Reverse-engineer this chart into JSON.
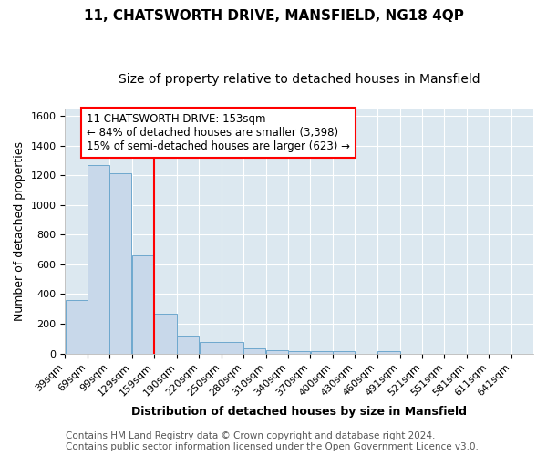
{
  "title1": "11, CHATSWORTH DRIVE, MANSFIELD, NG18 4QP",
  "title2": "Size of property relative to detached houses in Mansfield",
  "xlabel": "Distribution of detached houses by size in Mansfield",
  "ylabel": "Number of detached properties",
  "footer1": "Contains HM Land Registry data © Crown copyright and database right 2024.",
  "footer2": "Contains public sector information licensed under the Open Government Licence v3.0.",
  "categories": [
    "39sqm",
    "69sqm",
    "99sqm",
    "129sqm",
    "159sqm",
    "190sqm",
    "220sqm",
    "250sqm",
    "280sqm",
    "310sqm",
    "340sqm",
    "370sqm",
    "400sqm",
    "430sqm",
    "460sqm",
    "491sqm",
    "521sqm",
    "551sqm",
    "581sqm",
    "611sqm",
    "641sqm"
  ],
  "bar_lefts": [
    39,
    69,
    99,
    129,
    159,
    190,
    220,
    250,
    280,
    310,
    340,
    370,
    400,
    430,
    460,
    491,
    521,
    551,
    581,
    611,
    641
  ],
  "bar_rights": [
    69,
    99,
    129,
    159,
    190,
    220,
    250,
    280,
    310,
    340,
    370,
    400,
    430,
    460,
    491,
    521,
    551,
    581,
    611,
    641,
    671
  ],
  "bar_heights": [
    360,
    1270,
    1210,
    660,
    265,
    120,
    75,
    75,
    35,
    20,
    15,
    15,
    15,
    0,
    15,
    0,
    0,
    0,
    0,
    0,
    0
  ],
  "bar_color": "#c8d8ea",
  "bar_edgecolor": "#6ea8ce",
  "red_line_x": 159,
  "annotation_line1": "11 CHATSWORTH DRIVE: 153sqm",
  "annotation_line2": "← 84% of detached houses are smaller (3,398)",
  "annotation_line3": "15% of semi-detached houses are larger (623) →",
  "annotation_box_color": "white",
  "annotation_box_edgecolor": "red",
  "red_line_color": "red",
  "xlim_left": 39,
  "xlim_right": 671,
  "ylim": [
    0,
    1650
  ],
  "yticks": [
    0,
    200,
    400,
    600,
    800,
    1000,
    1200,
    1400,
    1600
  ],
  "grid_color": "white",
  "background_color": "#dce8f0",
  "title1_fontsize": 11,
  "title2_fontsize": 10,
  "xlabel_fontsize": 9,
  "ylabel_fontsize": 9,
  "tick_fontsize": 8,
  "footer_fontsize": 7.5,
  "annotation_fontsize": 8.5
}
